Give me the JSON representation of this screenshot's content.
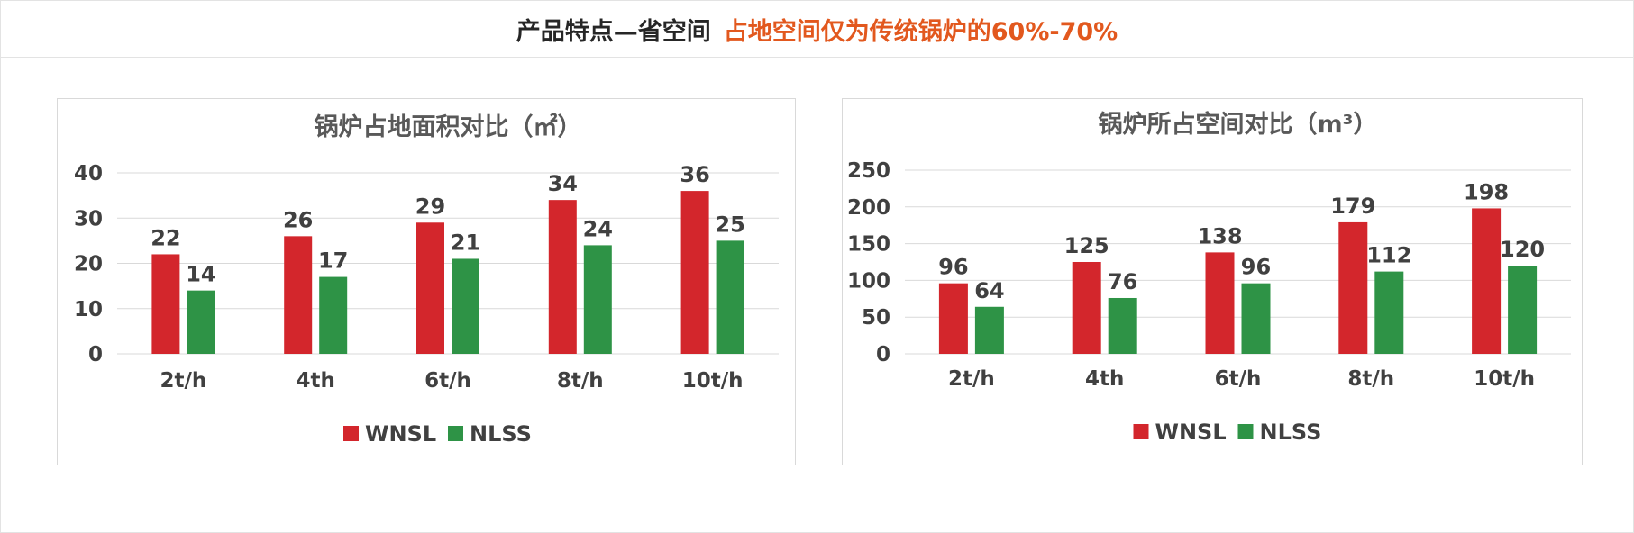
{
  "header": {
    "title": "产品特点—省空间",
    "highlight": "占地空间仅为传统锅炉的60%-70%"
  },
  "colors": {
    "header_text": "#262626",
    "highlight": "#e2581e",
    "WNSL": "#d3262c",
    "NLSS": "#2e9346",
    "grid": "#d9d9d9"
  },
  "chart_data": [
    {
      "type": "bar",
      "title": "锅炉占地面积对比（㎡）",
      "categories": [
        "2t/h",
        "4th",
        "6t/h",
        "8t/h",
        "10t/h"
      ],
      "series": [
        {
          "name": "WNSL",
          "values": [
            22,
            26,
            29,
            34,
            36
          ]
        },
        {
          "name": "NLSS",
          "values": [
            14,
            17,
            21,
            24,
            25
          ]
        }
      ],
      "ylim": [
        0,
        40
      ],
      "yticks": [
        0,
        10,
        20,
        30,
        40
      ],
      "grid": true,
      "legend": "bottom"
    },
    {
      "type": "bar",
      "title": "锅炉所占空间对比（m³）",
      "categories": [
        "2t/h",
        "4th",
        "6t/h",
        "8t/h",
        "10t/h"
      ],
      "series": [
        {
          "name": "WNSL",
          "values": [
            96,
            125,
            138,
            179,
            198
          ]
        },
        {
          "name": "NLSS",
          "values": [
            64,
            76,
            96,
            112,
            120
          ]
        }
      ],
      "ylim": [
        0,
        250
      ],
      "yticks": [
        0,
        50,
        100,
        150,
        200,
        250
      ],
      "grid": true,
      "legend": "bottom"
    }
  ]
}
